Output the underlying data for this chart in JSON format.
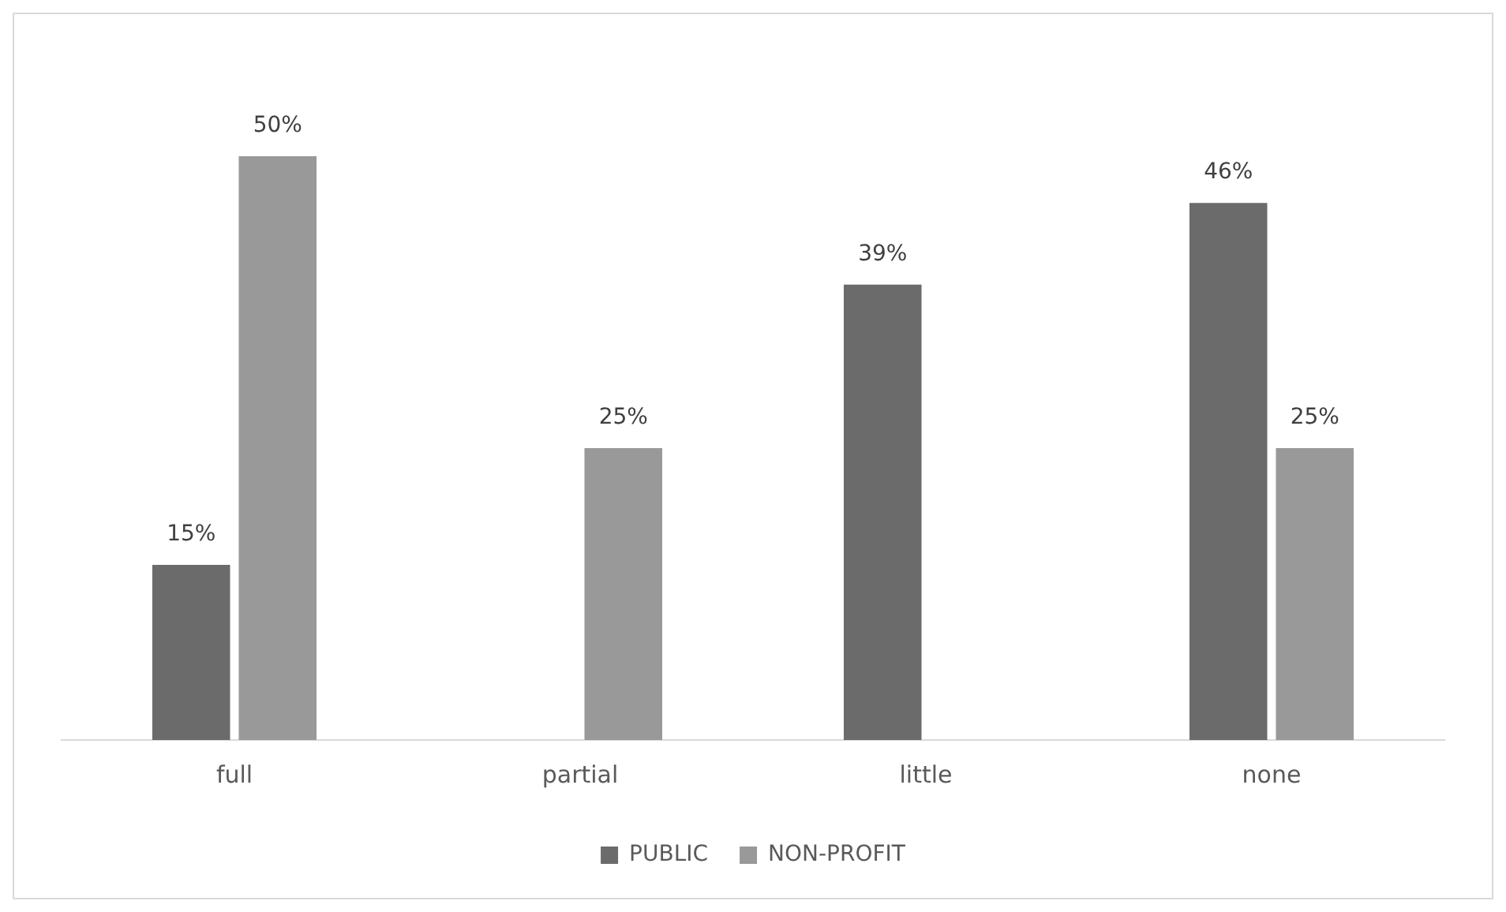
{
  "chart_data": {
    "type": "bar",
    "categories": [
      "full",
      "partial",
      "little",
      "none"
    ],
    "series": [
      {
        "name": "PUBLIC",
        "color": "#6b6b6b",
        "values": [
          15,
          null,
          39,
          46
        ],
        "value_labels": [
          "15%",
          null,
          "39%",
          "46%"
        ]
      },
      {
        "name": "NON-PROFIT",
        "color": "#999999",
        "values": [
          50,
          25,
          null,
          25
        ],
        "value_labels": [
          "50%",
          "25%",
          null,
          "25%"
        ]
      }
    ],
    "legend": "bottom",
    "grid": false,
    "tick_labels": "x"
  }
}
